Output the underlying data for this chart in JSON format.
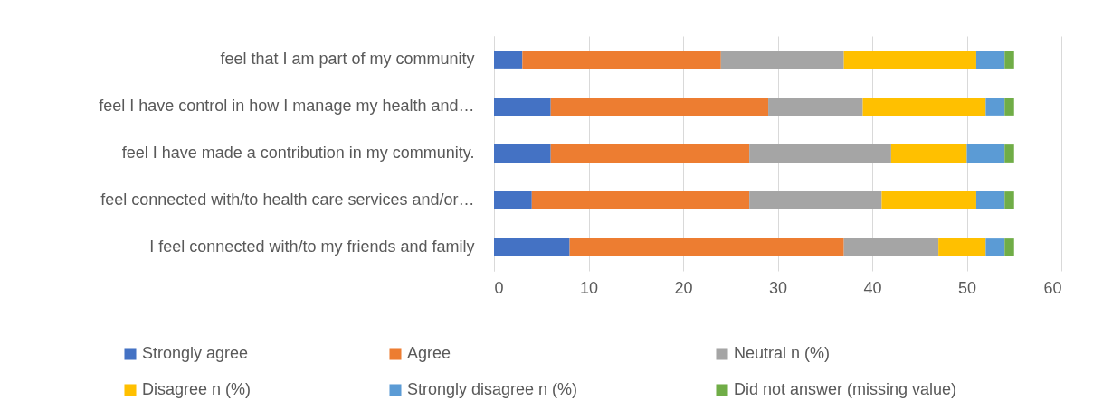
{
  "chart_data": {
    "type": "bar",
    "orientation": "horizontal",
    "stacked": true,
    "categories": [
      "feel that I am part of my community",
      "feel I have control in how I manage my health and…",
      "feel I have made a contribution in my community.",
      "feel connected with/to health care services and/or…",
      "I feel connected with/to my friends and family"
    ],
    "series": [
      {
        "name": "Strongly agree",
        "color": "#4472c4",
        "values": [
          3,
          6,
          6,
          4,
          8
        ]
      },
      {
        "name": "Agree",
        "color": "#ed7d31",
        "values": [
          21,
          23,
          21,
          23,
          29
        ]
      },
      {
        "name": "Neutral n (%)",
        "color": "#a5a5a5",
        "values": [
          13,
          10,
          15,
          14,
          10
        ]
      },
      {
        "name": "Disagree n (%)",
        "color": "#ffc000",
        "values": [
          14,
          13,
          8,
          10,
          5
        ]
      },
      {
        "name": "Strongly disagree n (%)",
        "color": "#5b9bd5",
        "values": [
          3,
          2,
          4,
          3,
          2
        ]
      },
      {
        "name": "Did not answer (missing value)",
        "color": "#70ad47",
        "values": [
          1,
          1,
          1,
          1,
          1
        ]
      }
    ],
    "xlim": [
      0,
      60
    ],
    "xticks": [
      0,
      10,
      20,
      30,
      40,
      50,
      60
    ],
    "grid": "x",
    "legend": "bottom"
  }
}
